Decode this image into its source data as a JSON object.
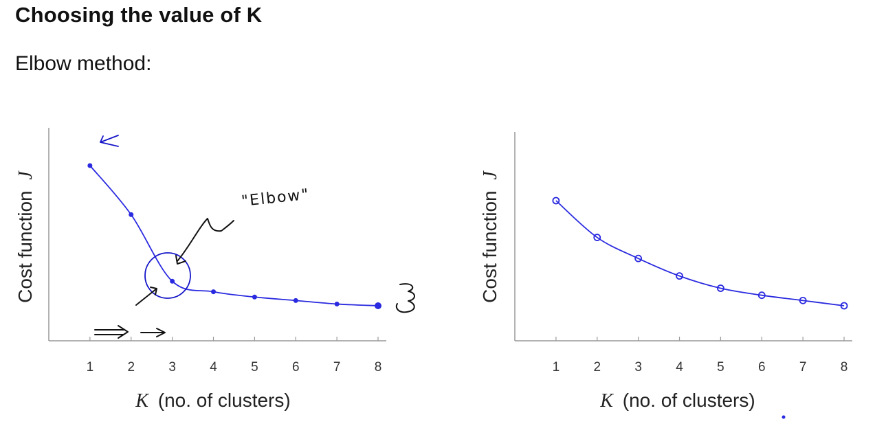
{
  "page": {
    "title": "Choosing the value of K",
    "subtitle": "Elbow method:"
  },
  "chart_data": [
    {
      "type": "line",
      "categories": [
        1,
        2,
        3,
        4,
        5,
        6,
        7,
        8
      ],
      "series": [
        {
          "values": [
            10.0,
            7.2,
            3.4,
            2.8,
            2.5,
            2.3,
            2.1,
            2.0
          ]
        }
      ],
      "xlabel_var": "K",
      "xlabel": "(no. of clusters)",
      "ylabel": "Cost function",
      "ylabel_var": "J",
      "ylim": [
        0,
        12
      ],
      "xlim": [
        0,
        8.2
      ],
      "grid": false,
      "annotations": [
        {
          "text": "\"Elbow\"",
          "target_k": 3
        }
      ],
      "color": "#2a2ae0"
    },
    {
      "type": "line",
      "categories": [
        1,
        2,
        3,
        4,
        5,
        6,
        7,
        8
      ],
      "series": [
        {
          "values": [
            8.0,
            5.9,
            4.7,
            3.7,
            3.0,
            2.6,
            2.3,
            2.0
          ]
        }
      ],
      "xlabel_var": "K",
      "xlabel": "(no. of clusters)",
      "ylabel": "Cost function",
      "ylabel_var": "J",
      "ylim": [
        0,
        12
      ],
      "xlim": [
        0,
        8.2
      ],
      "grid": false,
      "color": "#2a2ae0"
    }
  ]
}
